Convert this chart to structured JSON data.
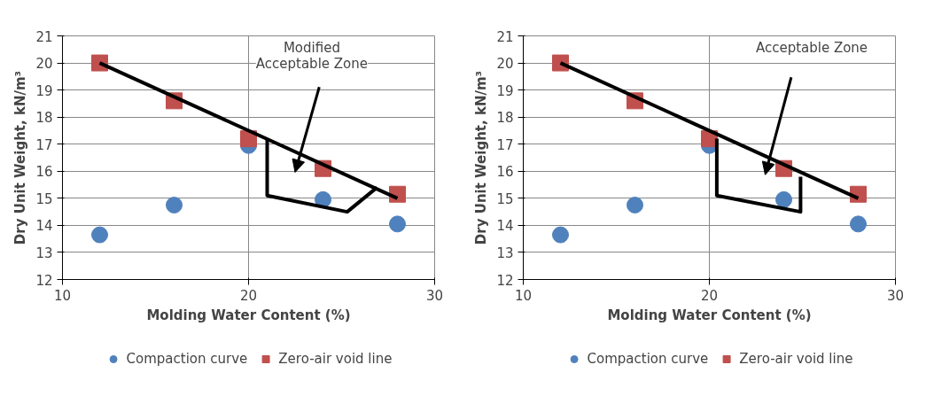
{
  "chart_data": [
    {
      "type": "scatter",
      "xlabel": "Molding Water Content (%)",
      "ylabel": "Dry Unit Weight, kN/m³",
      "xlim": [
        10,
        30
      ],
      "ylim": [
        12,
        21
      ],
      "xticks": [
        10,
        20,
        30
      ],
      "yticks": [
        12,
        13,
        14,
        15,
        16,
        17,
        18,
        19,
        20,
        21
      ],
      "grid": true,
      "legend": "bottom",
      "annotations": [
        "Modified\nAcceptable Zone"
      ],
      "series": [
        {
          "name": "Compaction curve",
          "color": "#4f81bd",
          "marker": "circle",
          "x": [
            12,
            16,
            20,
            24,
            28
          ],
          "values": [
            13.65,
            14.75,
            16.95,
            14.95,
            14.05
          ]
        },
        {
          "name": "Zero-air void line",
          "color": "#c0504d",
          "marker": "square",
          "x": [
            12,
            16,
            20,
            24,
            28
          ],
          "values": [
            20.0,
            18.6,
            17.2,
            16.1,
            15.15
          ]
        },
        {
          "type": "line",
          "color": "#000000",
          "x": [
            12,
            28
          ],
          "values": [
            20.0,
            15.0
          ]
        },
        {
          "type": "line",
          "color": "#000000",
          "x": [
            21.0,
            21.0,
            25.3,
            26.9
          ],
          "values": [
            17.2,
            15.1,
            14.5,
            15.4
          ]
        }
      ]
    },
    {
      "type": "scatter",
      "xlabel": "Molding Water Content (%)",
      "ylabel": "Dry Unit Weight, kN/m³",
      "xlim": [
        10,
        30
      ],
      "ylim": [
        12,
        21
      ],
      "xticks": [
        10,
        20,
        30
      ],
      "yticks": [
        12,
        13,
        14,
        15,
        16,
        17,
        18,
        19,
        20,
        21
      ],
      "grid": true,
      "legend": "bottom",
      "annotations": [
        "Acceptable Zone"
      ],
      "series": [
        {
          "name": "Compaction curve",
          "color": "#4f81bd",
          "marker": "circle",
          "x": [
            12,
            16,
            20,
            24,
            28
          ],
          "values": [
            13.65,
            14.75,
            16.95,
            14.95,
            14.05
          ]
        },
        {
          "name": "Zero-air void line",
          "color": "#c0504d",
          "marker": "square",
          "x": [
            12,
            16,
            20,
            24,
            28
          ],
          "values": [
            20.0,
            18.6,
            17.2,
            16.1,
            15.15
          ]
        },
        {
          "type": "line",
          "color": "#000000",
          "x": [
            12,
            28
          ],
          "values": [
            20.0,
            15.0
          ]
        },
        {
          "type": "line",
          "color": "#000000",
          "x": [
            20.4,
            20.4,
            24.9,
            24.9
          ],
          "values": [
            17.2,
            15.1,
            14.5,
            15.8
          ]
        }
      ]
    }
  ]
}
